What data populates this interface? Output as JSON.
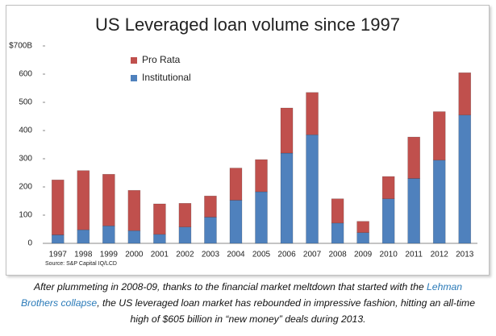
{
  "chart_data": {
    "type": "bar",
    "stacked": true,
    "title": "US Leveraged loan volume since 1997",
    "source": "Source: S&P Capital IQ/LCD",
    "categories": [
      "1997",
      "1998",
      "1999",
      "2000",
      "2001",
      "2002",
      "2003",
      "2004",
      "2005",
      "2006",
      "2007",
      "2008",
      "2009",
      "2010",
      "2011",
      "2012",
      "2013"
    ],
    "series": [
      {
        "name": "Institutional",
        "color": "#4f81bd",
        "values": [
          30,
          48,
          62,
          45,
          32,
          58,
          93,
          153,
          183,
          320,
          385,
          72,
          38,
          158,
          230,
          295,
          455
        ]
      },
      {
        "name": "Pro Rata",
        "color": "#c0504d",
        "values": [
          195,
          210,
          183,
          143,
          108,
          84,
          75,
          114,
          114,
          160,
          150,
          86,
          40,
          79,
          147,
          172,
          150
        ]
      }
    ],
    "ylim": [
      0,
      700
    ],
    "yticks": [
      0,
      100,
      200,
      300,
      400,
      500,
      600,
      {
        "value": 700,
        "label": "$700B"
      }
    ],
    "grid": false
  },
  "caption": {
    "before": "After plummeting in 2008-09, thanks to the financial market meltdown that started with the ",
    "link": "Lehman Brothers collapse",
    "after": ", the US leveraged loan market has rebounded in impressive fashion, hitting an all-time high of $605 billion in “new money” deals during 2013."
  }
}
